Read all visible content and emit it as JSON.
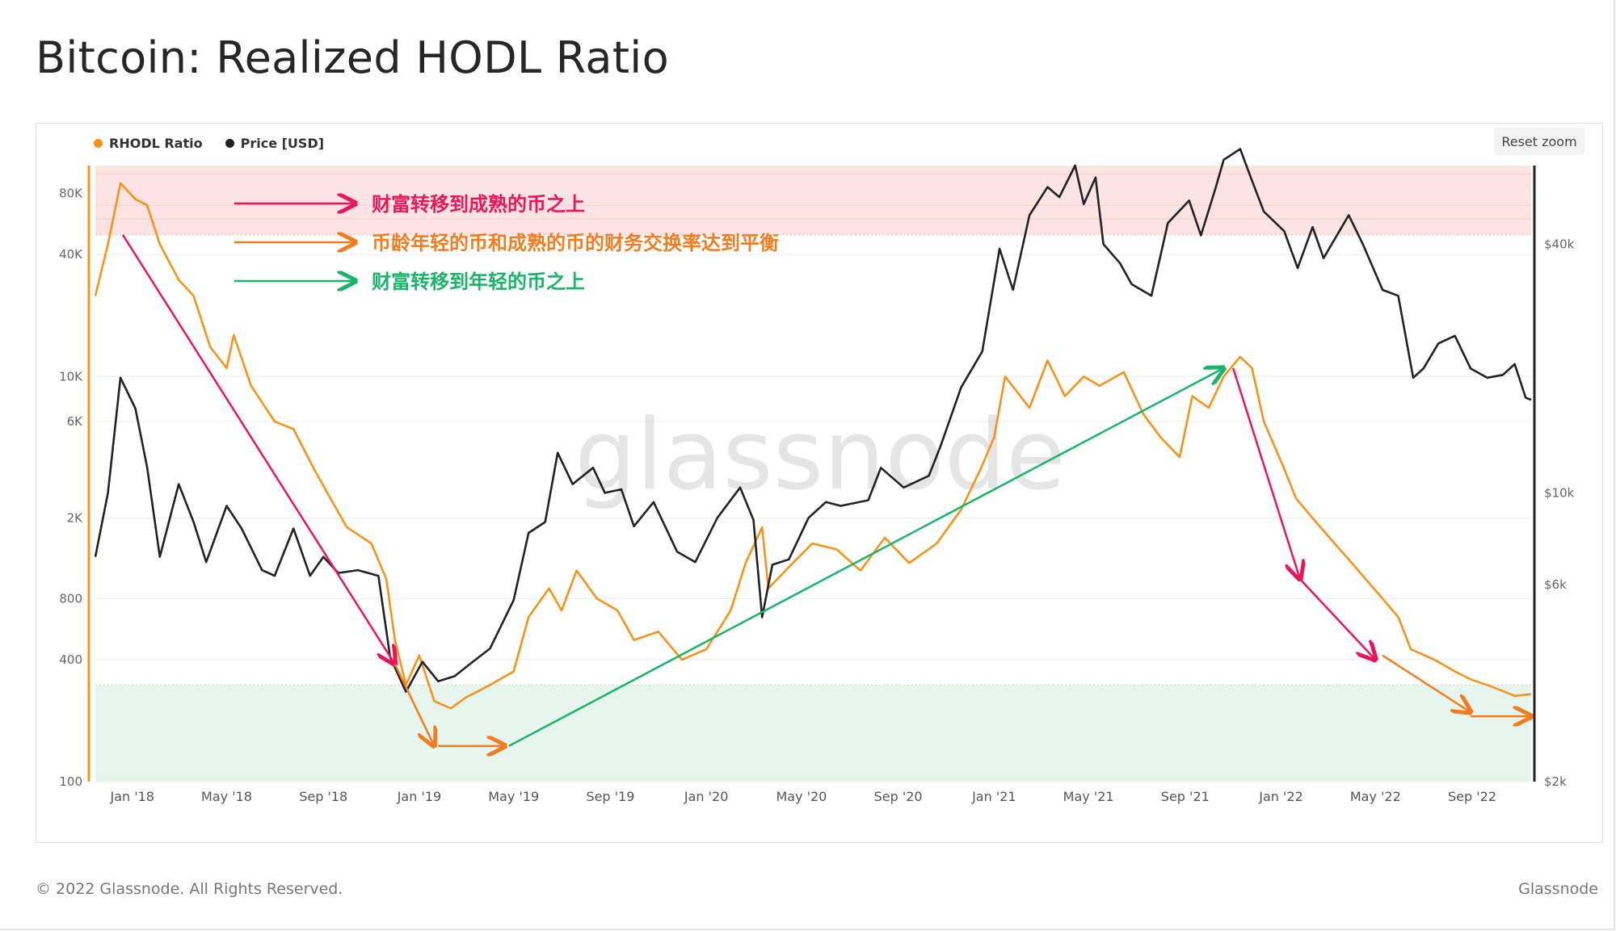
{
  "page": {
    "title": "Bitcoin: Realized HODL Ratio",
    "footer_left": "© 2022 Glassnode. All Rights Reserved.",
    "footer_right": "Glassnode",
    "watermark": "glassnode",
    "reset_zoom_label": "Reset zoom"
  },
  "chart_data": {
    "type": "line",
    "title": "Bitcoin: Realized HODL Ratio",
    "x_ticks": [
      "Jan '18",
      "May '18",
      "Sep '18",
      "Jan '19",
      "May '19",
      "Sep '19",
      "Jan '20",
      "May '20",
      "Sep '20",
      "Jan '21",
      "May '21",
      "Sep '21",
      "Jan '22",
      "May '22",
      "Sep '22"
    ],
    "x_range": [
      "2017-11-15",
      "2022-11-15"
    ],
    "left_axis": {
      "scale": "log",
      "ticks": [
        "100",
        "400",
        "800",
        "2K",
        "6K",
        "10K",
        "40K",
        "80K"
      ],
      "tick_values": [
        100,
        400,
        800,
        2000,
        6000,
        10000,
        40000,
        80000
      ],
      "range": [
        100,
        110000
      ]
    },
    "right_axis": {
      "scale": "log",
      "ticks": [
        "$2k",
        "$6k",
        "$10k",
        "$40k"
      ],
      "tick_values": [
        2000,
        6000,
        10000,
        40000
      ],
      "range": [
        2000,
        62000
      ]
    },
    "bands": [
      {
        "name": "upper-zone",
        "from": 50000,
        "to": 110000,
        "color": "#fde3e3"
      },
      {
        "name": "lower-zone",
        "from": 100,
        "to": 300,
        "color": "#e6f5ee"
      }
    ],
    "legend_position": "top-left",
    "grid": true,
    "series": [
      {
        "name": "RHODL Ratio",
        "color": "#f7931a",
        "axis": "left",
        "points": [
          [
            "2017-11-15",
            25000
          ],
          [
            "2017-12-01",
            45000
          ],
          [
            "2017-12-17",
            90000
          ],
          [
            "2018-01-05",
            75000
          ],
          [
            "2018-01-20",
            70000
          ],
          [
            "2018-02-05",
            45000
          ],
          [
            "2018-03-01",
            30000
          ],
          [
            "2018-03-20",
            25000
          ],
          [
            "2018-04-10",
            14000
          ],
          [
            "2018-05-01",
            11000
          ],
          [
            "2018-05-10",
            16000
          ],
          [
            "2018-06-01",
            9000
          ],
          [
            "2018-07-01",
            6000
          ],
          [
            "2018-07-25",
            5500
          ],
          [
            "2018-08-20",
            3500
          ],
          [
            "2018-09-10",
            2500
          ],
          [
            "2018-10-01",
            1800
          ],
          [
            "2018-11-01",
            1500
          ],
          [
            "2018-11-20",
            1000
          ],
          [
            "2018-12-01",
            500
          ],
          [
            "2018-12-15",
            300
          ],
          [
            "2019-01-01",
            420
          ],
          [
            "2019-01-20",
            250
          ],
          [
            "2019-02-10",
            230
          ],
          [
            "2019-03-01",
            260
          ],
          [
            "2019-04-01",
            300
          ],
          [
            "2019-05-01",
            350
          ],
          [
            "2019-05-20",
            650
          ],
          [
            "2019-06-15",
            900
          ],
          [
            "2019-07-01",
            700
          ],
          [
            "2019-07-20",
            1100
          ],
          [
            "2019-08-15",
            800
          ],
          [
            "2019-09-10",
            700
          ],
          [
            "2019-10-01",
            500
          ],
          [
            "2019-11-01",
            550
          ],
          [
            "2019-12-01",
            400
          ],
          [
            "2020-01-01",
            450
          ],
          [
            "2020-02-01",
            700
          ],
          [
            "2020-02-20",
            1200
          ],
          [
            "2020-03-12",
            1800
          ],
          [
            "2020-03-20",
            900
          ],
          [
            "2020-04-20",
            1200
          ],
          [
            "2020-05-15",
            1500
          ],
          [
            "2020-06-15",
            1400
          ],
          [
            "2020-07-15",
            1100
          ],
          [
            "2020-08-15",
            1600
          ],
          [
            "2020-09-15",
            1200
          ],
          [
            "2020-10-20",
            1500
          ],
          [
            "2020-11-20",
            2200
          ],
          [
            "2020-12-15",
            3500
          ],
          [
            "2021-01-01",
            5000
          ],
          [
            "2021-01-15",
            10000
          ],
          [
            "2021-02-15",
            7000
          ],
          [
            "2021-03-10",
            12000
          ],
          [
            "2021-04-01",
            8000
          ],
          [
            "2021-04-25",
            10000
          ],
          [
            "2021-05-15",
            9000
          ],
          [
            "2021-06-15",
            10500
          ],
          [
            "2021-07-10",
            6500
          ],
          [
            "2021-08-01",
            5000
          ],
          [
            "2021-08-25",
            4000
          ],
          [
            "2021-09-10",
            8000
          ],
          [
            "2021-10-01",
            7000
          ],
          [
            "2021-10-20",
            10000
          ],
          [
            "2021-11-10",
            12500
          ],
          [
            "2021-11-25",
            11000
          ],
          [
            "2021-12-10",
            6000
          ],
          [
            "2022-01-05",
            3500
          ],
          [
            "2022-01-20",
            2500
          ],
          [
            "2022-02-10",
            2000
          ],
          [
            "2022-03-10",
            1500
          ],
          [
            "2022-04-01",
            1200
          ],
          [
            "2022-05-10",
            800
          ],
          [
            "2022-05-30",
            650
          ],
          [
            "2022-06-15",
            450
          ],
          [
            "2022-07-15",
            400
          ],
          [
            "2022-08-10",
            350
          ],
          [
            "2022-08-30",
            320
          ],
          [
            "2022-09-20",
            300
          ],
          [
            "2022-10-10",
            280
          ],
          [
            "2022-10-25",
            265
          ],
          [
            "2022-11-15",
            270
          ]
        ]
      },
      {
        "name": "Price [USD]",
        "color": "#222222",
        "axis": "right",
        "points": [
          [
            "2017-11-15",
            7000
          ],
          [
            "2017-12-01",
            10000
          ],
          [
            "2017-12-17",
            19000
          ],
          [
            "2018-01-05",
            16000
          ],
          [
            "2018-01-20",
            11500
          ],
          [
            "2018-02-05",
            7000
          ],
          [
            "2018-03-01",
            10500
          ],
          [
            "2018-03-20",
            8500
          ],
          [
            "2018-04-05",
            6800
          ],
          [
            "2018-05-01",
            9300
          ],
          [
            "2018-05-20",
            8200
          ],
          [
            "2018-06-15",
            6500
          ],
          [
            "2018-07-01",
            6300
          ],
          [
            "2018-07-25",
            8200
          ],
          [
            "2018-08-15",
            6300
          ],
          [
            "2018-09-01",
            7000
          ],
          [
            "2018-09-20",
            6400
          ],
          [
            "2018-10-15",
            6500
          ],
          [
            "2018-11-10",
            6300
          ],
          [
            "2018-11-25",
            4000
          ],
          [
            "2018-12-15",
            3300
          ],
          [
            "2019-01-05",
            3900
          ],
          [
            "2019-01-25",
            3500
          ],
          [
            "2019-02-15",
            3600
          ],
          [
            "2019-03-10",
            3900
          ],
          [
            "2019-04-01",
            4200
          ],
          [
            "2019-05-01",
            5500
          ],
          [
            "2019-05-20",
            8000
          ],
          [
            "2019-06-10",
            8500
          ],
          [
            "2019-06-26",
            12500
          ],
          [
            "2019-07-15",
            10500
          ],
          [
            "2019-08-10",
            11500
          ],
          [
            "2019-08-25",
            10000
          ],
          [
            "2019-09-15",
            10200
          ],
          [
            "2019-10-01",
            8300
          ],
          [
            "2019-10-26",
            9500
          ],
          [
            "2019-11-25",
            7200
          ],
          [
            "2019-12-18",
            6800
          ],
          [
            "2020-01-15",
            8700
          ],
          [
            "2020-02-13",
            10300
          ],
          [
            "2020-03-01",
            8600
          ],
          [
            "2020-03-12",
            5000
          ],
          [
            "2020-03-25",
            6700
          ],
          [
            "2020-04-15",
            6900
          ],
          [
            "2020-05-10",
            8700
          ],
          [
            "2020-06-01",
            9500
          ],
          [
            "2020-06-20",
            9300
          ],
          [
            "2020-07-25",
            9600
          ],
          [
            "2020-08-10",
            11500
          ],
          [
            "2020-09-08",
            10300
          ],
          [
            "2020-10-10",
            11000
          ],
          [
            "2020-10-25",
            13000
          ],
          [
            "2020-11-20",
            18000
          ],
          [
            "2020-12-17",
            22000
          ],
          [
            "2021-01-08",
            39000
          ],
          [
            "2021-01-25",
            31000
          ],
          [
            "2021-02-15",
            47000
          ],
          [
            "2021-03-10",
            55000
          ],
          [
            "2021-03-25",
            52000
          ],
          [
            "2021-04-14",
            62000
          ],
          [
            "2021-04-25",
            50000
          ],
          [
            "2021-05-10",
            58000
          ],
          [
            "2021-05-20",
            40000
          ],
          [
            "2021-06-10",
            36000
          ],
          [
            "2021-06-25",
            32000
          ],
          [
            "2021-07-20",
            30000
          ],
          [
            "2021-08-10",
            45000
          ],
          [
            "2021-09-06",
            51000
          ],
          [
            "2021-09-21",
            42000
          ],
          [
            "2021-10-10",
            55000
          ],
          [
            "2021-10-20",
            64000
          ],
          [
            "2021-11-10",
            68000
          ],
          [
            "2021-11-25",
            57000
          ],
          [
            "2021-12-10",
            48000
          ],
          [
            "2022-01-05",
            43000
          ],
          [
            "2022-01-22",
            35000
          ],
          [
            "2022-02-10",
            44000
          ],
          [
            "2022-02-24",
            37000
          ],
          [
            "2022-03-28",
            47000
          ],
          [
            "2022-04-15",
            40000
          ],
          [
            "2022-05-10",
            31000
          ],
          [
            "2022-05-30",
            30000
          ],
          [
            "2022-06-18",
            19000
          ],
          [
            "2022-07-01",
            20000
          ],
          [
            "2022-07-20",
            23000
          ],
          [
            "2022-08-10",
            24000
          ],
          [
            "2022-08-30",
            20000
          ],
          [
            "2022-09-20",
            19000
          ],
          [
            "2022-10-10",
            19300
          ],
          [
            "2022-10-25",
            20500
          ],
          [
            "2022-11-08",
            17000
          ],
          [
            "2022-11-15",
            16800
          ]
        ]
      }
    ],
    "annotations": [
      {
        "text": "财富转移到成熟的币之上",
        "color": "#e8175d"
      },
      {
        "text": "币龄年轻的币和成熟的币的财务交换率达到平衡",
        "color": "#f47c20"
      },
      {
        "text": "财富转移到年轻的币之上",
        "color": "#1ab36b"
      }
    ],
    "trend_arrows": [
      {
        "color": "#e8175d",
        "from": [
          "2017-12-20",
          50000
        ],
        "to": [
          "2018-12-01",
          380
        ]
      },
      {
        "color": "#f47c20",
        "from": [
          "2018-12-01",
          380
        ],
        "to": [
          "2019-01-20",
          150
        ]
      },
      {
        "color": "#f47c20",
        "from": [
          "2019-01-25",
          150
        ],
        "to": [
          "2019-04-20",
          150
        ]
      },
      {
        "color": "#1ab36b",
        "from": [
          "2019-04-25",
          150
        ],
        "to": [
          "2021-10-20",
          11000
        ]
      },
      {
        "color": "#e8175d",
        "from": [
          "2021-11-01",
          11000
        ],
        "to": [
          "2022-01-25",
          1000
        ]
      },
      {
        "color": "#e8175d",
        "from": [
          "2022-01-25",
          1000
        ],
        "to": [
          "2022-05-01",
          400
        ]
      },
      {
        "color": "#f47c20",
        "from": [
          "2022-05-10",
          420
        ],
        "to": [
          "2022-08-30",
          220
        ]
      },
      {
        "color": "#f47c20",
        "from": [
          "2022-08-30",
          210
        ],
        "to": [
          "2022-11-15",
          210
        ]
      }
    ]
  }
}
